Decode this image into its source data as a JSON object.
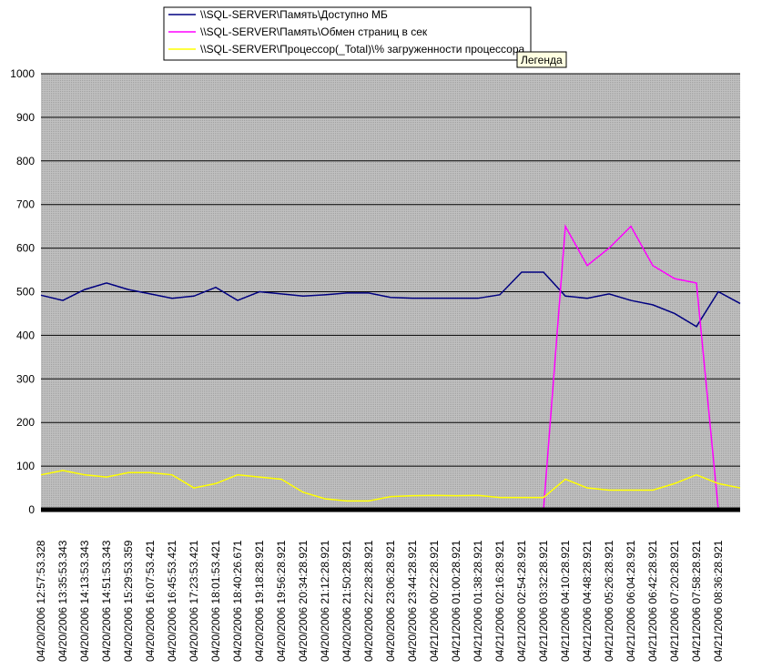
{
  "chart_data": {
    "type": "line",
    "legend_entries_note_free": null,
    "categories": [
      "04/20/2006 12:57:53.328",
      "04/20/2006 13:35:53.343",
      "04/20/2006 14:13:53.343",
      "04/20/2006 14:51:53.343",
      "04/20/2006 15:29:53.359",
      "04/20/2006 16:07:53.421",
      "04/20/2006 16:45:53.421",
      "04/20/2006 17:23:53.421",
      "04/20/2006 18:01:53.421",
      "04/20/2006 18:40:26.671",
      "04/20/2006 19:18:28.921",
      "04/20/2006 19:56:28.921",
      "04/20/2006 20:34:28.921",
      "04/20/2006 21:12:28.921",
      "04/20/2006 21:50:28.921",
      "04/20/2006 22:28:28.921",
      "04/20/2006 23:06:28.921",
      "04/20/2006 23:44:28.921",
      "04/21/2006 00:22:28.921",
      "04/21/2006 01:00:28.921",
      "04/21/2006 01:38:28.921",
      "04/21/2006 02:16:28.921",
      "04/21/2006 02:54:28.921",
      "04/21/2006 03:32:28.921",
      "04/21/2006 04:10:28.921",
      "04/21/2006 04:48:28.921",
      "04/21/2006 05:26:28.921",
      "04/21/2006 06:04:28.921",
      "04/21/2006 06:42:28.921",
      "04/21/2006 07:20:28.921",
      "04/21/2006 07:58:28.921",
      "04/21/2006 08:36:28.921",
      null
    ],
    "series": [
      {
        "name": "\\\\SQL-SERVER\\Память\\Доступно МБ",
        "color": "#000080",
        "values": [
          492,
          480,
          505,
          520,
          505,
          495,
          485,
          490,
          510,
          480,
          500,
          495,
          490,
          493,
          497,
          497,
          487,
          485,
          485,
          485,
          485,
          493,
          545,
          545,
          490,
          485,
          495,
          480,
          470,
          450,
          420,
          500,
          473
        ]
      },
      {
        "name": "\\\\SQL-SERVER\\Память\\Обмен страниц в сек",
        "color": "#ff00ff",
        "values": [
          0,
          0,
          0,
          0,
          0,
          0,
          0,
          0,
          0,
          0,
          0,
          0,
          0,
          0,
          0,
          0,
          0,
          0,
          0,
          0,
          0,
          0,
          0,
          0,
          650,
          560,
          600,
          650,
          560,
          530,
          520,
          0,
          0
        ]
      },
      {
        "name": "\\\\SQL-SERVER\\Процессор(_Total)\\% загруженности процессора",
        "color": "#ffff00",
        "values": [
          80,
          90,
          80,
          75,
          85,
          85,
          80,
          50,
          60,
          80,
          75,
          70,
          40,
          25,
          20,
          20,
          30,
          32,
          33,
          32,
          33,
          28,
          28,
          28,
          70,
          50,
          45,
          45,
          45,
          60,
          80,
          60,
          50
        ]
      }
    ],
    "ylim": [
      0,
      1000
    ],
    "yticks": [
      0,
      100,
      200,
      300,
      400,
      500,
      600,
      700,
      800,
      900,
      1000
    ],
    "grid": true,
    "tooltip": "Легенда"
  }
}
